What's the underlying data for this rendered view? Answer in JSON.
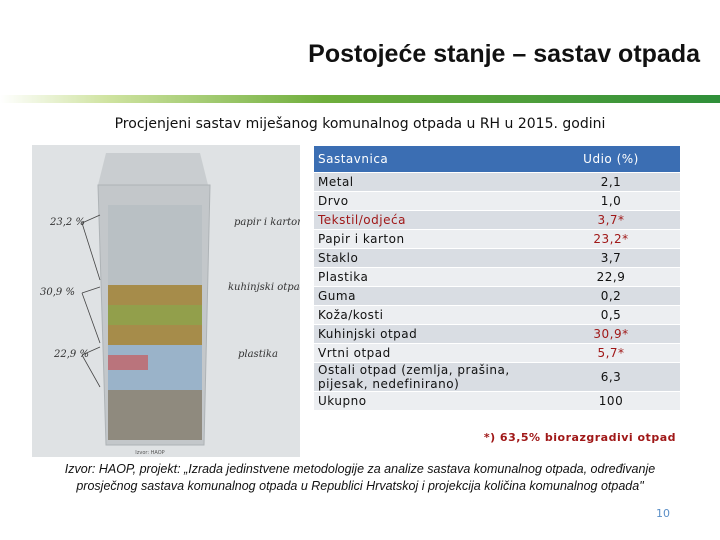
{
  "header": {
    "title": "Postojeće stanje – sastav otpada",
    "subtitle": "Procjenjeni sastav miješanog komunalnog otpada u RH u 2015. godini"
  },
  "image": {
    "annotations": [
      "23,2 %",
      "papir i karton",
      "30,9 %",
      "kuhinjski otpad",
      "22,9 %",
      "plastika"
    ],
    "credit": "Izvor: HAOP"
  },
  "table": {
    "header": [
      "Sastavnica",
      "Udio (%)"
    ],
    "rows": [
      {
        "name": "Metal",
        "value": "2,1"
      },
      {
        "name": "Drvo",
        "value": "1,0"
      },
      {
        "name": "Tekstil/odjeća",
        "value": "3,7*",
        "color": "#a01818",
        "name_color": "#a01818"
      },
      {
        "name": "Papir i karton",
        "value": "23,2*",
        "color": "#a01818"
      },
      {
        "name": "Staklo",
        "value": "3,7"
      },
      {
        "name": "Plastika",
        "value": "22,9"
      },
      {
        "name": "Guma",
        "value": "0,2"
      },
      {
        "name": "Koža/kosti",
        "value": "0,5"
      },
      {
        "name": "Kuhinjski otpad",
        "value": "30,9*",
        "color": "#a01818"
      },
      {
        "name": "Vrtni otpad",
        "value": "5,7*",
        "color": "#a01818"
      },
      {
        "name": "Ostali otpad (zemlja, prašina, pijesak, nedefinirano)",
        "value": "6,3"
      },
      {
        "name": "Ukupno",
        "value": "100"
      }
    ],
    "note": "*) 63,5% biorazgradivi otpad"
  },
  "source": [
    "Izvor: HAOP, projekt: „Izrada jedinstvene metodologije za analize sastava komunalnog otpada, određivanje",
    "prosječnog sastava komunalnog otpada u Republici Hrvatskoj i projekcija količina komunalnog otpada\""
  ],
  "page_number": "10"
}
